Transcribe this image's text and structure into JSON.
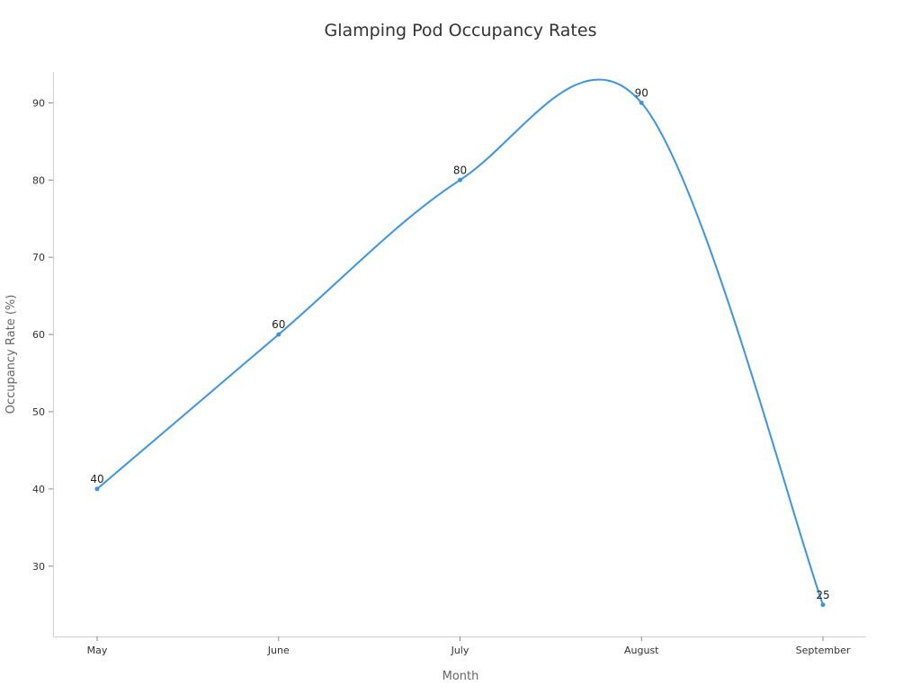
{
  "chart_data": {
    "type": "line",
    "title": "Glamping Pod Occupancy Rates",
    "xlabel": "Month",
    "ylabel": "Occupancy Rate (%)",
    "categories": [
      "May",
      "June",
      "July",
      "August",
      "September"
    ],
    "series": [
      {
        "values": [
          40,
          60,
          80,
          90,
          25
        ]
      }
    ],
    "data_labels": [
      "40",
      "60",
      "80",
      "90",
      "25"
    ],
    "yticks": [
      30,
      40,
      50,
      60,
      70,
      80,
      90
    ],
    "ylim": [
      20.9,
      94
    ],
    "grid": false,
    "smooth": true,
    "line_color": "#3b95e6",
    "axis_color": "#d0d0d0"
  }
}
